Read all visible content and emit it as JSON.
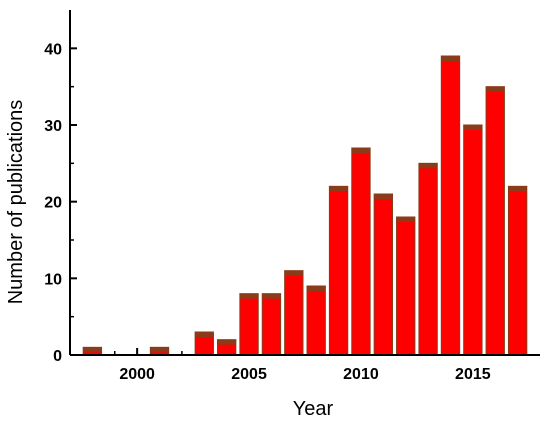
{
  "chart_data": {
    "type": "bar",
    "xlabel": "Year",
    "ylabel": "Number of publications",
    "x": [
      1998,
      2001,
      2003,
      2004,
      2005,
      2006,
      2007,
      2008,
      2009,
      2010,
      2011,
      2012,
      2013,
      2014,
      2015,
      2016,
      2017
    ],
    "values": [
      1,
      1,
      3,
      2,
      8,
      8,
      11,
      9,
      22,
      27,
      21,
      18,
      25,
      39,
      30,
      35,
      22
    ],
    "xlim": [
      1997,
      2018
    ],
    "ylim": [
      0,
      45
    ],
    "x_ticks": [
      2000,
      2005,
      2010,
      2015
    ],
    "y_ticks": [
      0,
      10,
      20,
      30,
      40
    ],
    "grid": false,
    "legend": "none",
    "colors": {
      "bar_fill": "#ff0000",
      "bar_top": "#8b3a1a",
      "axis": "#000000"
    }
  }
}
